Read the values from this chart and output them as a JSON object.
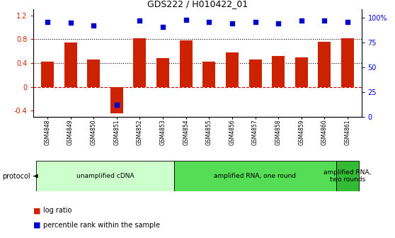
{
  "title": "GDS222 / H010422_01",
  "samples": [
    "GSM4848",
    "GSM4849",
    "GSM4850",
    "GSM4851",
    "GSM4852",
    "GSM4853",
    "GSM4854",
    "GSM4855",
    "GSM4856",
    "GSM4857",
    "GSM4858",
    "GSM4859",
    "GSM4860",
    "GSM4861"
  ],
  "log_ratio": [
    0.42,
    0.74,
    0.46,
    -0.45,
    0.82,
    0.48,
    0.78,
    0.43,
    0.58,
    0.46,
    0.52,
    0.5,
    0.76,
    0.82
  ],
  "percentile": [
    96,
    95,
    92,
    12,
    97,
    91,
    98,
    96,
    94,
    96,
    94,
    97,
    97,
    96
  ],
  "ylim_left": [
    -0.5,
    1.3
  ],
  "ylim_right": [
    0,
    108.33
  ],
  "yticks_left": [
    -0.4,
    0.0,
    0.4,
    0.8,
    1.2
  ],
  "ytick_labels_left": [
    "-0.4",
    "0",
    "0.4",
    "0.8",
    "1.2"
  ],
  "yticks_right": [
    0,
    25,
    50,
    75,
    100
  ],
  "ytick_labels_right": [
    "0",
    "25",
    "50",
    "75",
    "100%"
  ],
  "hlines": [
    0.4,
    0.8
  ],
  "bar_color": "#cc2200",
  "scatter_color": "#0000cc",
  "zero_line_color": "#cc0000",
  "protocol_groups": [
    {
      "label": "unamplified cDNA",
      "start": 0,
      "end": 5,
      "color": "#ccffcc"
    },
    {
      "label": "amplified RNA, one round",
      "start": 6,
      "end": 12,
      "color": "#55dd55"
    },
    {
      "label": "amplified RNA,\ntwo rounds",
      "start": 13,
      "end": 13,
      "color": "#33bb33"
    }
  ],
  "bg_color": "#ffffff"
}
